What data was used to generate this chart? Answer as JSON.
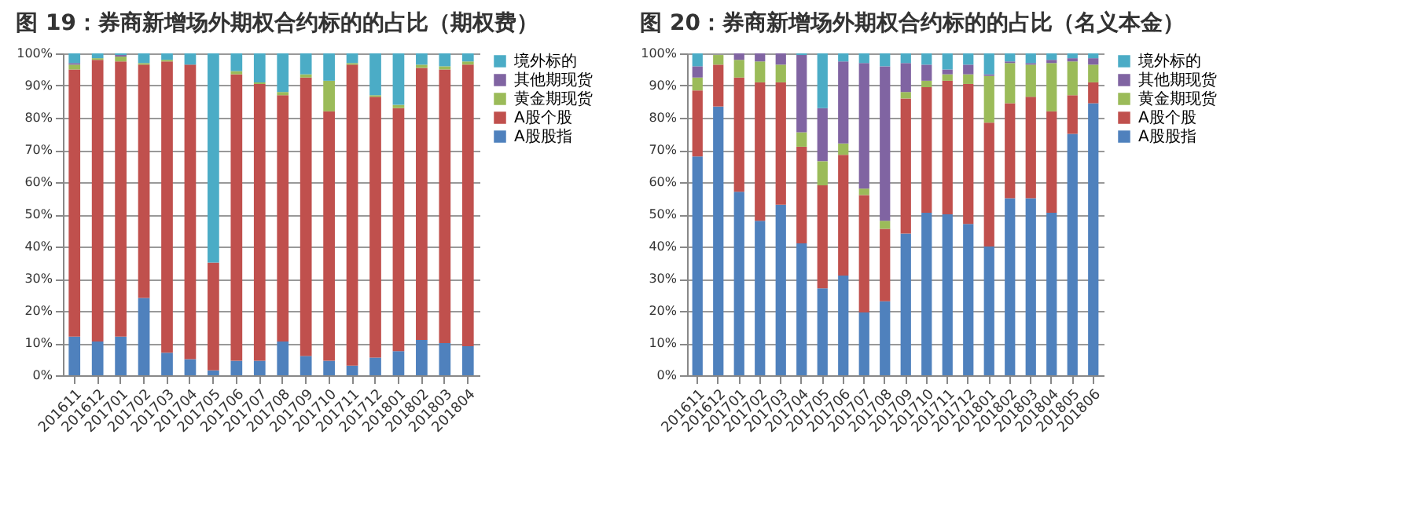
{
  "chart_data": [
    {
      "type": "bar",
      "title": "图 19：券商新增场外期权合约标的的占比（期权费）",
      "stacked": true,
      "legend": "right",
      "grid": "y",
      "categories": [
        "201611",
        "201612",
        "201701",
        "201702",
        "201703",
        "201704",
        "201705",
        "201706",
        "201707",
        "201708",
        "201709",
        "201710",
        "201711",
        "201712",
        "201801",
        "201802",
        "201803",
        "201804"
      ],
      "ylim": [
        0,
        100
      ],
      "yticks": [
        {
          "value": 0,
          "label": "0%"
        },
        {
          "value": 10,
          "label": "10%"
        },
        {
          "value": 20,
          "label": "20%"
        },
        {
          "value": 30,
          "label": "30%"
        },
        {
          "value": 40,
          "label": "40%"
        },
        {
          "value": 50,
          "label": "50%"
        },
        {
          "value": 60,
          "label": "60%"
        },
        {
          "value": 70,
          "label": "70%"
        },
        {
          "value": 80,
          "label": "80%"
        },
        {
          "value": 90,
          "label": "90%"
        },
        {
          "value": 100,
          "label": "100%"
        }
      ],
      "series": [
        {
          "name": "A股股指",
          "color": "#4f81bd",
          "values": [
            12,
            10.5,
            12,
            24,
            7,
            5,
            1.5,
            4.5,
            4.5,
            10.5,
            6,
            4.5,
            3,
            5.5,
            7.5,
            11,
            10,
            9
          ]
        },
        {
          "name": "A股个股",
          "color": "#c0504d",
          "values": [
            83,
            87.5,
            85.5,
            72.5,
            90.5,
            91.5,
            33.5,
            89,
            86,
            76.5,
            86.5,
            77.5,
            93.5,
            81,
            75.5,
            84.5,
            85,
            87.5
          ]
        },
        {
          "name": "黄金期现货",
          "color": "#9bbb59",
          "values": [
            1.5,
            0.5,
            1.5,
            0.5,
            0.5,
            0,
            0,
            1,
            0.5,
            1,
            1,
            9.5,
            0.5,
            0.5,
            1,
            1,
            1,
            1
          ]
        },
        {
          "name": "其他期现货",
          "color": "#8064a2",
          "values": [
            0.5,
            0,
            0.5,
            0,
            0,
            0,
            0,
            0,
            0,
            0,
            0,
            0,
            0,
            0,
            0,
            0,
            0,
            0
          ]
        },
        {
          "name": "境外标的",
          "color": "#4bacc6",
          "values": [
            3,
            1.5,
            0.5,
            3,
            2,
            3.5,
            65,
            5.5,
            9,
            12,
            6.5,
            8.5,
            3,
            13,
            16,
            3.5,
            4,
            2.5
          ]
        }
      ]
    },
    {
      "type": "bar",
      "title": "图 20：券商新增场外期权合约标的的占比（名义本金）",
      "stacked": true,
      "legend": "right",
      "grid": "y",
      "categories": [
        "201611",
        "201612",
        "201701",
        "201702",
        "201703",
        "201704",
        "201705",
        "201706",
        "201707",
        "201708",
        "201709",
        "201710",
        "201711",
        "201712",
        "201801",
        "201802",
        "201803",
        "201804",
        "201805",
        "201806"
      ],
      "ylim": [
        0,
        100
      ],
      "yticks": [
        {
          "value": 0,
          "label": "0%"
        },
        {
          "value": 10,
          "label": "10%"
        },
        {
          "value": 20,
          "label": "20%"
        },
        {
          "value": 30,
          "label": "30%"
        },
        {
          "value": 40,
          "label": "40%"
        },
        {
          "value": 50,
          "label": "50%"
        },
        {
          "value": 60,
          "label": "60%"
        },
        {
          "value": 70,
          "label": "70%"
        },
        {
          "value": 80,
          "label": "80%"
        },
        {
          "value": 90,
          "label": "90%"
        },
        {
          "value": 100,
          "label": "100%"
        }
      ],
      "series": [
        {
          "name": "A股股指",
          "color": "#4f81bd",
          "values": [
            68,
            83.5,
            57,
            48,
            53,
            41,
            27,
            31,
            19.5,
            23,
            44,
            50.5,
            50,
            47,
            40,
            55,
            55,
            50.5,
            75,
            84.5
          ]
        },
        {
          "name": "A股个股",
          "color": "#c0504d",
          "values": [
            20.5,
            13,
            35.5,
            43,
            38,
            30,
            32,
            37.5,
            36.5,
            22.5,
            42,
            39,
            41.5,
            43.5,
            38.5,
            29.5,
            31.5,
            31.5,
            12,
            6.5
          ]
        },
        {
          "name": "黄金期现货",
          "color": "#9bbb59",
          "values": [
            4,
            3,
            5.5,
            6.5,
            5.5,
            4.5,
            7.5,
            3.5,
            2,
            2.5,
            2,
            2,
            2,
            3,
            14.5,
            12.5,
            10,
            15,
            10.5,
            5.5
          ]
        },
        {
          "name": "其他期现货",
          "color": "#8064a2",
          "values": [
            3.5,
            null,
            2,
            2.5,
            3.5,
            24,
            16.5,
            25.5,
            39,
            48,
            9,
            5,
            1.5,
            3,
            0.5,
            0.5,
            0.5,
            1,
            1,
            2
          ]
        },
        {
          "name": "境外标的",
          "color": "#4bacc6",
          "values": [
            4,
            0,
            0,
            0,
            0,
            0.5,
            17,
            2.5,
            3,
            4,
            3,
            3.5,
            5,
            3.5,
            6.5,
            2.5,
            3,
            2,
            1.5,
            1.5
          ]
        }
      ]
    }
  ]
}
